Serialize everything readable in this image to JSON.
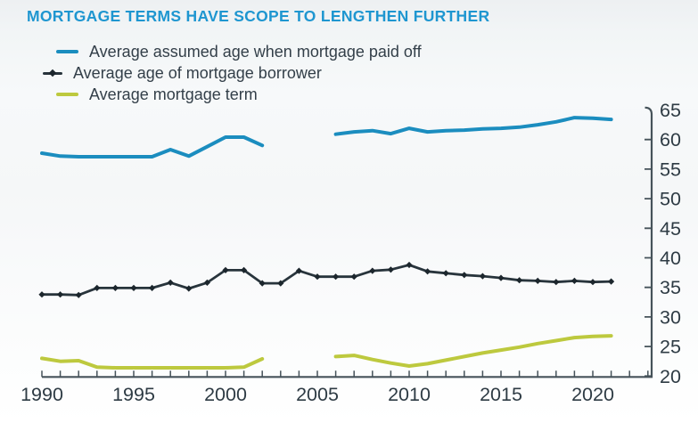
{
  "title": {
    "text": "MORTGAGE TERMS HAVE SCOPE TO LENGTHEN FURTHER",
    "color": "#1e96d0"
  },
  "legend": {
    "items": [
      {
        "label": "Average assumed age when mortgage paid off",
        "marker": "line",
        "color": "#1b8dbf"
      },
      {
        "label": "Average age of mortgage borrower",
        "marker": "line-diamond",
        "color": "#28343c"
      },
      {
        "label": "Average mortgage term",
        "marker": "line",
        "color": "#bdc93e"
      }
    ]
  },
  "chart_data": {
    "type": "line",
    "title": "MORTGAGE TERMS HAVE SCOPE TO LENGTHEN FURTHER",
    "xlabel": "",
    "ylabel": "",
    "grid": false,
    "legend_position": "top-left",
    "y_axis_side": "right",
    "x": [
      1990,
      1991,
      1992,
      1993,
      1994,
      1995,
      1996,
      1997,
      1998,
      1999,
      2000,
      2001,
      2002,
      2003,
      2004,
      2005,
      2006,
      2007,
      2008,
      2009,
      2010,
      2011,
      2012,
      2013,
      2014,
      2015,
      2016,
      2017,
      2018,
      2019,
      2020,
      2021
    ],
    "x_ticks": [
      1990,
      1995,
      2000,
      2005,
      2010,
      2015,
      2020
    ],
    "x_minor_tick_step": 1,
    "x_minor_tick_end": 2023,
    "y_ticks": [
      20,
      25,
      30,
      35,
      40,
      45,
      50,
      55,
      60,
      65
    ],
    "ylim": [
      20,
      65
    ],
    "axis_color": "#46535a",
    "gap_note": "Blue and green series have no data for 2003-2005",
    "series": [
      {
        "name": "Average assumed age when mortgage paid off",
        "color": "#1b8dbf",
        "marker": "none",
        "values": [
          57.7,
          57.2,
          57.1,
          57.1,
          57.1,
          57.1,
          57.1,
          58.3,
          57.2,
          58.8,
          60.4,
          60.4,
          59.0,
          null,
          null,
          null,
          60.9,
          61.3,
          61.5,
          61.0,
          61.9,
          61.3,
          61.5,
          61.6,
          61.8,
          61.9,
          62.1,
          62.5,
          63.0,
          63.7,
          63.6,
          63.4
        ]
      },
      {
        "name": "Average age of mortgage borrower",
        "color": "#28343c",
        "marker": "diamond",
        "values": [
          33.8,
          33.8,
          33.7,
          34.9,
          34.9,
          34.9,
          34.9,
          35.8,
          34.8,
          35.8,
          37.9,
          37.9,
          35.7,
          35.7,
          37.8,
          36.8,
          36.8,
          36.8,
          37.8,
          38.0,
          38.8,
          37.7,
          37.4,
          37.1,
          36.9,
          36.6,
          36.2,
          36.1,
          35.9,
          36.1,
          35.9,
          36.0
        ]
      },
      {
        "name": "Average mortgage term",
        "color": "#bdc93e",
        "marker": "none",
        "values": [
          23.0,
          22.5,
          22.6,
          21.5,
          21.4,
          21.4,
          21.4,
          21.4,
          21.4,
          21.4,
          21.4,
          21.5,
          22.9,
          null,
          null,
          null,
          23.3,
          23.5,
          22.8,
          22.2,
          21.7,
          22.1,
          22.7,
          23.3,
          23.9,
          24.4,
          24.9,
          25.5,
          26.0,
          26.5,
          26.7,
          26.8
        ]
      }
    ]
  }
}
